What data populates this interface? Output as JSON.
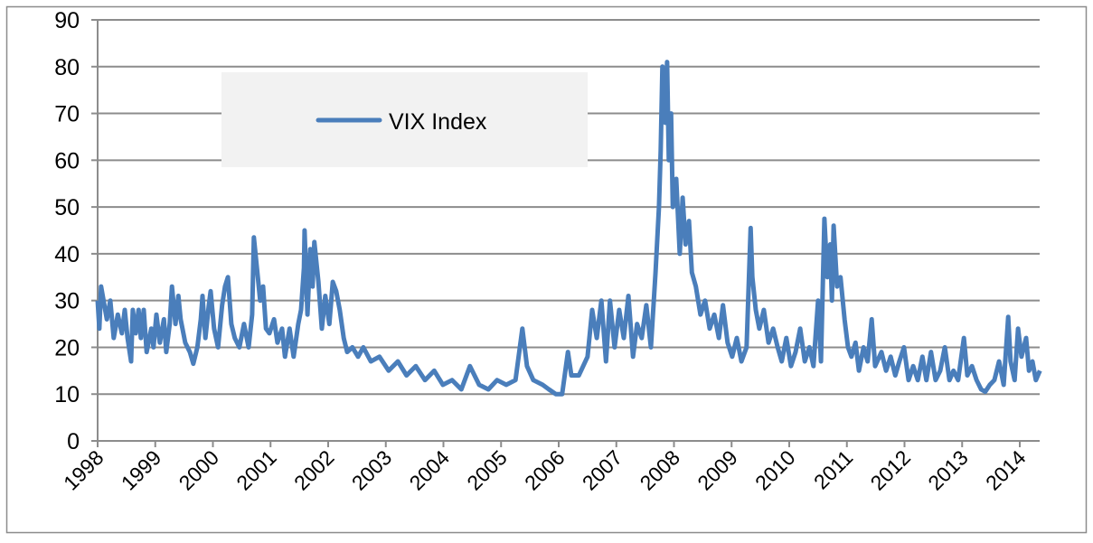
{
  "chart_data": {
    "type": "line",
    "title": "",
    "xlabel": "",
    "ylabel": "",
    "xlim": [
      1998,
      2014.35
    ],
    "ylim": [
      0,
      90
    ],
    "yticks": [
      0,
      10,
      20,
      30,
      40,
      50,
      60,
      70,
      80,
      90
    ],
    "xticks": [
      "1998",
      "1999",
      "2000",
      "2001",
      "2002",
      "2003",
      "2004",
      "2005",
      "2006",
      "2007",
      "2008",
      "2009",
      "2010",
      "2011",
      "2012",
      "2013",
      "2014"
    ],
    "grid": "horizontal",
    "legend": {
      "placement": "top-left",
      "background": "#f2f2f2"
    },
    "series": [
      {
        "name": "VIX Index",
        "color": "#4a7ebb",
        "x": [
          1998.0,
          1998.03,
          1998.06,
          1998.16,
          1998.22,
          1998.28,
          1998.35,
          1998.42,
          1998.47,
          1998.52,
          1998.58,
          1998.61,
          1998.66,
          1998.71,
          1998.75,
          1998.8,
          1998.85,
          1998.93,
          1998.97,
          1999.02,
          1999.08,
          1999.15,
          1999.19,
          1999.25,
          1999.29,
          1999.35,
          1999.4,
          1999.44,
          1999.52,
          1999.6,
          1999.66,
          1999.73,
          1999.79,
          1999.82,
          1999.87,
          1999.93,
          1999.96,
          2000.02,
          2000.09,
          2000.16,
          2000.21,
          2000.26,
          2000.32,
          2000.38,
          2000.46,
          2000.54,
          2000.62,
          2000.68,
          2000.71,
          2000.78,
          2000.82,
          2000.87,
          2000.92,
          2000.98,
          2001.06,
          2001.12,
          2001.2,
          2001.25,
          2001.33,
          2001.4,
          2001.48,
          2001.53,
          2001.58,
          2001.59,
          2001.64,
          2001.69,
          2001.73,
          2001.76,
          2001.83,
          2001.89,
          2001.95,
          2002.02,
          2002.08,
          2002.14,
          2002.2,
          2002.27,
          2002.33,
          2002.42,
          2002.52,
          2002.61,
          2002.74,
          2002.89,
          2003.05,
          2003.21,
          2003.36,
          2003.52,
          2003.68,
          2003.84,
          2003.99,
          2004.15,
          2004.31,
          2004.46,
          2004.62,
          2004.78,
          2004.93,
          2005.09,
          2005.25,
          2005.37,
          2005.45,
          2005.56,
          2005.72,
          2005.83,
          2005.95,
          2006.06,
          2006.16,
          2006.22,
          2006.35,
          2006.5,
          2006.58,
          2006.66,
          2006.74,
          2006.82,
          2006.89,
          2006.97,
          2007.05,
          2007.13,
          2007.21,
          2007.29,
          2007.36,
          2007.44,
          2007.52,
          2007.6,
          2007.68,
          2007.74,
          2007.77,
          2007.8,
          2007.85,
          2007.88,
          2007.91,
          2007.95,
          2007.98,
          2008.04,
          2008.1,
          2008.15,
          2008.2,
          2008.26,
          2008.31,
          2008.38,
          2008.46,
          2008.54,
          2008.62,
          2008.7,
          2008.78,
          2008.85,
          2008.93,
          2009.01,
          2009.09,
          2009.17,
          2009.26,
          2009.33,
          2009.36,
          2009.42,
          2009.48,
          2009.56,
          2009.64,
          2009.72,
          2009.8,
          2009.87,
          2009.95,
          2010.03,
          2010.11,
          2010.19,
          2010.27,
          2010.35,
          2010.42,
          2010.5,
          2010.55,
          2010.61,
          2010.66,
          2010.71,
          2010.74,
          2010.77,
          2010.83,
          2010.89,
          2010.96,
          2011.02,
          2011.08,
          2011.15,
          2011.21,
          2011.29,
          2011.36,
          2011.43,
          2011.49,
          2011.6,
          2011.68,
          2011.76,
          2011.84,
          2011.91,
          2011.99,
          2012.07,
          2012.15,
          2012.23,
          2012.31,
          2012.38,
          2012.46,
          2012.54,
          2012.62,
          2012.7,
          2012.78,
          2012.85,
          2012.93,
          2013.03,
          2013.09,
          2013.17,
          2013.25,
          2013.33,
          2013.4,
          2013.48,
          2013.56,
          2013.64,
          2013.72,
          2013.8,
          2013.84,
          2013.91,
          2013.97,
          2014.03,
          2014.11,
          2014.16,
          2014.22,
          2014.28,
          2014.35
        ],
        "y": [
          30,
          24,
          33,
          26,
          30,
          22,
          27,
          23,
          28,
          22,
          17,
          28,
          23,
          28,
          22,
          28,
          19,
          24,
          20,
          27,
          21,
          26,
          19,
          25,
          33,
          25,
          31,
          26,
          21,
          19,
          16.5,
          20,
          26,
          31,
          22,
          29,
          32,
          24,
          20,
          29,
          33,
          35,
          25,
          22,
          20,
          25,
          20,
          27,
          43.5,
          35,
          30,
          33,
          24,
          23,
          26,
          21,
          24,
          18,
          24,
          18,
          25,
          28,
          37,
          45,
          27,
          41,
          33,
          42.5,
          34,
          24,
          31,
          25,
          34,
          32,
          28,
          22,
          19,
          20,
          18,
          20,
          17,
          18,
          15,
          17,
          14,
          16,
          13,
          15,
          12,
          13,
          11,
          16,
          12,
          11,
          13,
          12,
          13,
          24,
          16,
          13,
          12,
          11,
          10,
          10,
          19,
          14,
          14,
          18,
          28,
          22,
          30,
          17,
          30,
          20,
          28,
          22,
          31,
          18,
          25,
          22,
          29,
          20,
          36,
          50,
          62,
          80,
          68,
          81,
          60,
          70,
          50,
          56,
          40,
          52,
          42,
          47,
          36,
          33,
          27,
          30,
          24,
          27,
          22,
          29,
          21,
          18,
          22,
          17,
          20,
          45.5,
          35,
          28,
          24,
          28,
          21,
          24,
          20,
          17,
          22,
          16,
          19,
          24,
          17,
          20,
          16,
          30,
          17,
          47.5,
          35,
          42,
          30,
          46,
          33,
          35,
          26,
          20,
          18,
          21,
          15,
          20,
          17,
          26,
          16,
          19,
          15,
          18,
          14,
          17,
          20,
          13,
          16,
          13,
          18,
          13,
          19,
          13,
          15,
          20,
          13,
          15,
          13,
          22,
          14,
          16,
          13,
          11,
          10.5,
          12,
          13,
          17,
          12,
          26.5,
          17,
          13,
          24,
          18,
          22,
          15,
          17,
          13,
          15
        ]
      }
    ]
  }
}
